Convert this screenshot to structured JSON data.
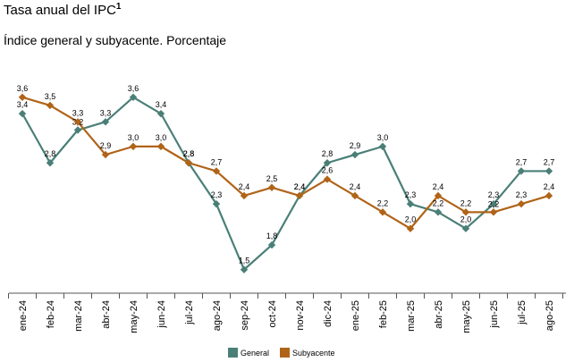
{
  "title": "Tasa anual del IPC",
  "title_sup": "1",
  "subtitle": "Índice general y subyacente. Porcentaje",
  "colors": {
    "general": "#4a7f77",
    "subyacente": "#b06418",
    "axis": "#555555"
  },
  "chart_data": {
    "type": "line",
    "categories": [
      "ene-24",
      "feb-24",
      "mar-24",
      "abr-24",
      "may-24",
      "jun-24",
      "jul-24",
      "ago-24",
      "sep-24",
      "oct-24",
      "nov-24",
      "dic-24",
      "ene-25",
      "feb-25",
      "mar-25",
      "abr-25",
      "may-25",
      "jun-25",
      "jul-25",
      "ago-25"
    ],
    "series": [
      {
        "name": "General",
        "values": [
          3.4,
          2.8,
          3.2,
          3.3,
          3.6,
          3.4,
          2.8,
          2.3,
          1.5,
          1.8,
          2.4,
          2.8,
          2.9,
          3.0,
          2.3,
          2.2,
          2.0,
          2.3,
          2.7,
          2.7
        ]
      },
      {
        "name": "Subyacente",
        "values": [
          3.6,
          3.5,
          3.3,
          2.9,
          3.0,
          3.0,
          2.8,
          2.7,
          2.4,
          2.5,
          2.4,
          2.6,
          2.4,
          2.2,
          2.0,
          2.4,
          2.2,
          2.2,
          2.3,
          2.4
        ]
      }
    ],
    "labels": {
      "General": [
        "3,4",
        "2,8",
        "3,2",
        "3,3",
        "3,6",
        "3,4",
        "2,8",
        "2,3",
        "1,5",
        "1,8",
        "2,4",
        "2,8",
        "2,9",
        "3,0",
        "2,3",
        "2,2",
        "2,0",
        "2,3",
        "2,7",
        "2,7"
      ],
      "Subyacente": [
        "3,6",
        "3,5",
        "3,3",
        "2,9",
        "3,0",
        "3,0",
        "2,8",
        "2,7",
        "2,4",
        "2,5",
        "2,4",
        "2,6",
        "2,4",
        "2,2",
        "2,0",
        "2,4",
        "2,2",
        "2,2",
        "2,3",
        "2,4"
      ]
    },
    "ylim": [
      1.3,
      3.75
    ],
    "grid": false,
    "legend": "bottom"
  }
}
